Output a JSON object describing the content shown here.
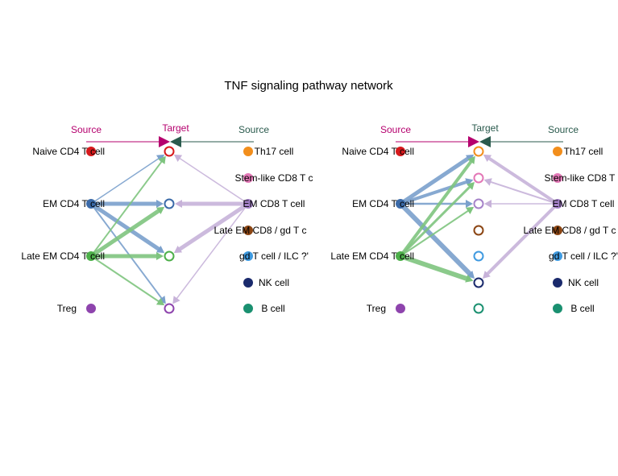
{
  "title": "TNF signaling pathway network",
  "headers": {
    "source": "Source",
    "target": "Target"
  },
  "colors": {
    "source_header": "#b5006e",
    "target_header_left": "#b5006e",
    "target_header_right": "#2a5a4d",
    "right_header": "#2a5a4d",
    "edge_em_cd4": "#7aa0cc",
    "edge_late_em_cd4": "#7ec47e",
    "edge_em_cd8": "#c7b2d9"
  },
  "cells": [
    {
      "id": "naive_cd4",
      "label": "Naive CD4 T cell",
      "color": "#d7191c",
      "side": "left"
    },
    {
      "id": "em_cd4",
      "label": "EM CD4 T cell",
      "color": "#3b6aa8",
      "side": "left"
    },
    {
      "id": "late_em_cd4",
      "label": "Late EM CD4 T cell",
      "color": "#4daf4a",
      "side": "left"
    },
    {
      "id": "treg",
      "label": "Treg",
      "color": "#8e44ad",
      "side": "left"
    },
    {
      "id": "th17",
      "label": "Th17 cell",
      "color": "#f28e1c",
      "side": "right"
    },
    {
      "id": "stem_cd8",
      "label": "Stem-like CD8 T c",
      "color": "#e377b6",
      "side": "right"
    },
    {
      "id": "em_cd8",
      "label": "EM CD8 T cell",
      "color": "#a582c9",
      "side": "right"
    },
    {
      "id": "late_em_cd8",
      "label": "Late EM CD8 / gd T c",
      "color": "#8b4513",
      "side": "right"
    },
    {
      "id": "gd_ilc",
      "label": "gd T cell / ILC ?'",
      "color": "#3f9ae0",
      "side": "right"
    },
    {
      "id": "nk",
      "label": "NK cell",
      "color": "#1a2a6c",
      "side": "right"
    },
    {
      "id": "b",
      "label": "B cell",
      "color": "#1a9070",
      "side": "right"
    }
  ],
  "panels": [
    {
      "targets": [
        "naive_cd4",
        "em_cd4",
        "late_em_cd4",
        "treg"
      ],
      "edges": [
        {
          "from": "em_cd4",
          "to": "naive_cd4",
          "weight": 1.5
        },
        {
          "from": "em_cd4",
          "to": "em_cd4",
          "weight": 5
        },
        {
          "from": "em_cd4",
          "to": "late_em_cd4",
          "weight": 5
        },
        {
          "from": "em_cd4",
          "to": "treg",
          "weight": 2
        },
        {
          "from": "late_em_cd4",
          "to": "naive_cd4",
          "weight": 2
        },
        {
          "from": "late_em_cd4",
          "to": "em_cd4",
          "weight": 5
        },
        {
          "from": "late_em_cd4",
          "to": "late_em_cd4",
          "weight": 5
        },
        {
          "from": "late_em_cd4",
          "to": "treg",
          "weight": 2
        },
        {
          "from": "em_cd8",
          "to": "naive_cd4",
          "weight": 1.5
        },
        {
          "from": "em_cd8",
          "to": "em_cd4",
          "weight": 5
        },
        {
          "from": "em_cd8",
          "to": "late_em_cd4",
          "weight": 5
        },
        {
          "from": "em_cd8",
          "to": "treg",
          "weight": 1.5
        }
      ]
    },
    {
      "targets": [
        "th17",
        "stem_cd8",
        "em_cd8",
        "late_em_cd8",
        "gd_ilc",
        "nk",
        "b"
      ],
      "edges": [
        {
          "from": "em_cd4",
          "to": "th17",
          "weight": 5
        },
        {
          "from": "em_cd4",
          "to": "stem_cd8",
          "weight": 4
        },
        {
          "from": "em_cd4",
          "to": "em_cd8",
          "weight": 2.5
        },
        {
          "from": "em_cd4",
          "to": "nk",
          "weight": 6
        },
        {
          "from": "late_em_cd4",
          "to": "th17",
          "weight": 4
        },
        {
          "from": "late_em_cd4",
          "to": "stem_cd8",
          "weight": 3
        },
        {
          "from": "late_em_cd4",
          "to": "em_cd8",
          "weight": 2
        },
        {
          "from": "late_em_cd4",
          "to": "nk",
          "weight": 6
        },
        {
          "from": "em_cd8",
          "to": "th17",
          "weight": 4
        },
        {
          "from": "em_cd8",
          "to": "stem_cd8",
          "weight": 2
        },
        {
          "from": "em_cd8",
          "to": "em_cd8",
          "weight": 1.5
        },
        {
          "from": "em_cd8",
          "to": "nk",
          "weight": 4
        }
      ]
    }
  ]
}
